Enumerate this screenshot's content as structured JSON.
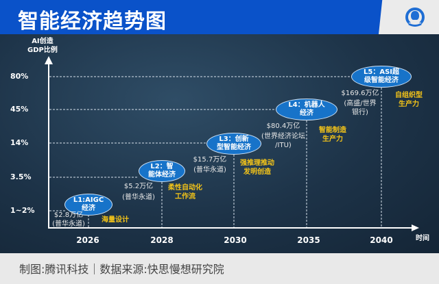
{
  "title": "智能经济趋势图",
  "y_axis_label": [
    "AI创造",
    "GDP比例"
  ],
  "x_axis_label": "时间",
  "y_ticks": [
    "80%",
    "45%",
    "14%",
    "3.5%",
    "1~2%"
  ],
  "x_ticks": [
    "2026",
    "2028",
    "2030",
    "2035",
    "2040"
  ],
  "stages": [
    {
      "name": [
        "L1:AIGC",
        "经济"
      ],
      "amount": "$2.8万亿",
      "source": [
        "(普华永道)"
      ],
      "feature": [
        "海量设计"
      ]
    },
    {
      "name": [
        "L2：智",
        "能体经济"
      ],
      "amount": "$5.2万亿",
      "source": [
        "(普华永道)"
      ],
      "feature": [
        "柔性自动化",
        "工作流"
      ]
    },
    {
      "name": [
        "L3：创新",
        "型智能经济"
      ],
      "amount": "$15.7万亿",
      "source": [
        "(普华永道)"
      ],
      "feature": [
        "强推理推动",
        "发明创造"
      ]
    },
    {
      "name": [
        "L4：机器人",
        "经济"
      ],
      "amount": "$80.4万亿",
      "source": [
        "(世界经济论坛",
        "/ITU)"
      ],
      "feature": [
        "智能制造",
        "生产力"
      ]
    },
    {
      "name": [
        "L5：ASI超",
        "级智能经济"
      ],
      "amount": "$169.6万亿",
      "source": [
        "(高盛/世界",
        "银行)"
      ],
      "feature": [
        "自组织型",
        "生产力"
      ]
    }
  ],
  "footer": "制图:腾讯科技｜数据来源:快思慢想研究院",
  "colors": {
    "header": "#0a52c9",
    "ellipse": "#1773c9",
    "feature_text": "#f5c518"
  }
}
